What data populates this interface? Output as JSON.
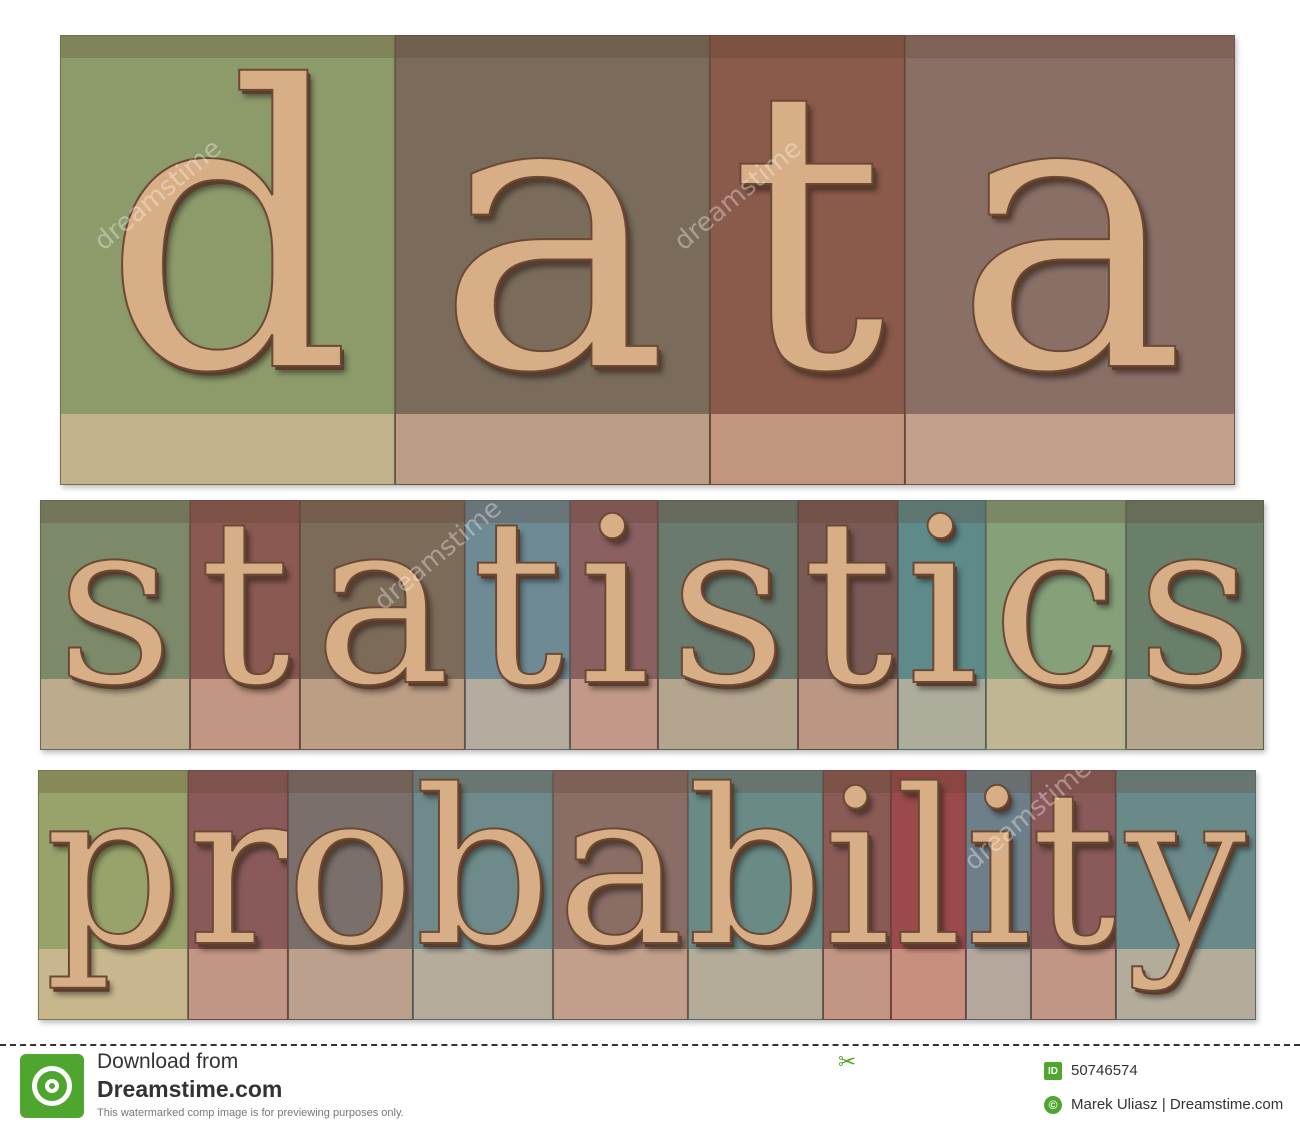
{
  "image": {
    "words": [
      {
        "word": "data",
        "letters": [
          "d",
          "a",
          "t",
          "a"
        ]
      },
      {
        "word": "statistics",
        "letters": [
          "s",
          "t",
          "a",
          "t",
          "i",
          "s",
          "t",
          "i",
          "c",
          "s"
        ]
      },
      {
        "word": "probability",
        "letters": [
          "p",
          "r",
          "o",
          "b",
          "a",
          "b",
          "i",
          "l",
          "i",
          "t",
          "y"
        ]
      }
    ],
    "block_colors": {
      "data": [
        "#8d9a6a",
        "#7a6b5a",
        "#8a5a4a",
        "#8a6f66"
      ],
      "statistics": [
        "#7d8a6a",
        "#8a5a52",
        "#7d6b5a",
        "#6e8a94",
        "#8a6060",
        "#6b7a6e",
        "#7a5a55",
        "#5e8a8a",
        "#86a07a",
        "#6a7f6a"
      ],
      "probability": [
        "#97a36a",
        "#8a5a5a",
        "#7a6f6a",
        "#6f8a8a",
        "#8a6e66",
        "#6a8a86",
        "#8a5a55",
        "#9a4a4a",
        "#6e7f8a",
        "#8a5a5a",
        "#6a8a8a"
      ]
    }
  },
  "watermark": {
    "text": "dreamstime"
  },
  "footer": {
    "download_label": "Download from",
    "site_name": "Dreamstime.com",
    "disclaimer": "This watermarked comp image is for previewing purposes only.",
    "id_badge": "ID",
    "image_id": "50746574",
    "copyright_badge": "©",
    "credit": "Marek Uliasz | Dreamstime.com"
  }
}
